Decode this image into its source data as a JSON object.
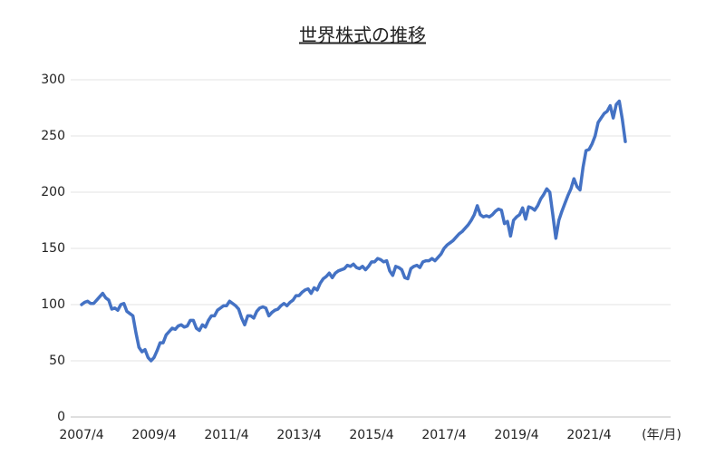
{
  "chart_data": {
    "type": "line",
    "title": "世界株式の推移",
    "x_label": "(年/月)",
    "categories": [
      "2007/4",
      null,
      null,
      null,
      null,
      null,
      null,
      null,
      null,
      null,
      null,
      null,
      null,
      null,
      null,
      null,
      null,
      null,
      null,
      null,
      null,
      null,
      null,
      null,
      "2009/4",
      null,
      null,
      null,
      null,
      null,
      null,
      null,
      null,
      null,
      null,
      null,
      null,
      null,
      null,
      null,
      null,
      null,
      null,
      null,
      null,
      null,
      null,
      null,
      "2011/4",
      null,
      null,
      null,
      null,
      null,
      null,
      null,
      null,
      null,
      null,
      null,
      null,
      null,
      null,
      null,
      null,
      null,
      null,
      null,
      null,
      null,
      null,
      null,
      "2013/4",
      null,
      null,
      null,
      null,
      null,
      null,
      null,
      null,
      null,
      null,
      null,
      null,
      null,
      null,
      null,
      null,
      null,
      null,
      null,
      null,
      null,
      null,
      null,
      "2015/4",
      null,
      null,
      null,
      null,
      null,
      null,
      null,
      null,
      null,
      null,
      null,
      null,
      null,
      null,
      null,
      null,
      null,
      null,
      null,
      null,
      null,
      null,
      null,
      "2017/4",
      null,
      null,
      null,
      null,
      null,
      null,
      null,
      null,
      null,
      null,
      null,
      null,
      null,
      null,
      null,
      null,
      null,
      null,
      null,
      null,
      null,
      null,
      null,
      "2019/4",
      null,
      null,
      null,
      null,
      null,
      null,
      null,
      null,
      null,
      null,
      null,
      null,
      null,
      null,
      null,
      null,
      null,
      null,
      null,
      null,
      null,
      null,
      null,
      "2021/4",
      null,
      null,
      null,
      null,
      null,
      null,
      null,
      null,
      null,
      null,
      null,
      null
    ],
    "values": [
      100,
      102,
      103,
      101,
      101,
      104,
      107,
      110,
      106,
      104,
      96,
      97,
      95,
      100,
      101,
      94,
      92,
      90,
      75,
      62,
      58,
      60,
      53,
      50,
      53,
      59,
      66,
      66,
      73,
      76,
      79,
      78,
      81,
      82,
      80,
      81,
      86,
      86,
      79,
      77,
      82,
      80,
      86,
      90,
      90,
      95,
      97,
      99,
      99,
      103,
      101,
      99,
      96,
      88,
      82,
      90,
      90,
      88,
      94,
      97,
      98,
      97,
      90,
      93,
      95,
      96,
      99,
      101,
      99,
      102,
      104,
      108,
      108,
      111,
      113,
      114,
      110,
      115,
      113,
      119,
      123,
      125,
      128,
      124,
      128,
      130,
      131,
      132,
      135,
      134,
      136,
      133,
      132,
      134,
      131,
      134,
      138,
      138,
      141,
      140,
      138,
      139,
      130,
      126,
      134,
      133,
      131,
      124,
      123,
      132,
      134,
      135,
      133,
      138,
      139,
      139,
      141,
      139,
      142,
      145,
      150,
      153,
      155,
      157,
      160,
      163,
      165,
      168,
      171,
      175,
      180,
      188,
      180,
      178,
      179,
      178,
      180,
      183,
      185,
      184,
      172,
      174,
      161,
      175,
      178,
      180,
      186,
      176,
      187,
      186,
      184,
      188,
      194,
      198,
      203,
      200,
      180,
      159,
      175,
      183,
      190,
      197,
      203,
      212,
      205,
      202,
      222,
      237,
      238,
      243,
      250,
      262,
      266,
      270,
      272,
      277,
      266,
      278,
      281,
      265,
      245
    ],
    "color": "#4472c4",
    "ylim": [
      0,
      300
    ],
    "yticks": [
      0,
      50,
      100,
      150,
      200,
      250,
      300
    ],
    "grid": true
  }
}
